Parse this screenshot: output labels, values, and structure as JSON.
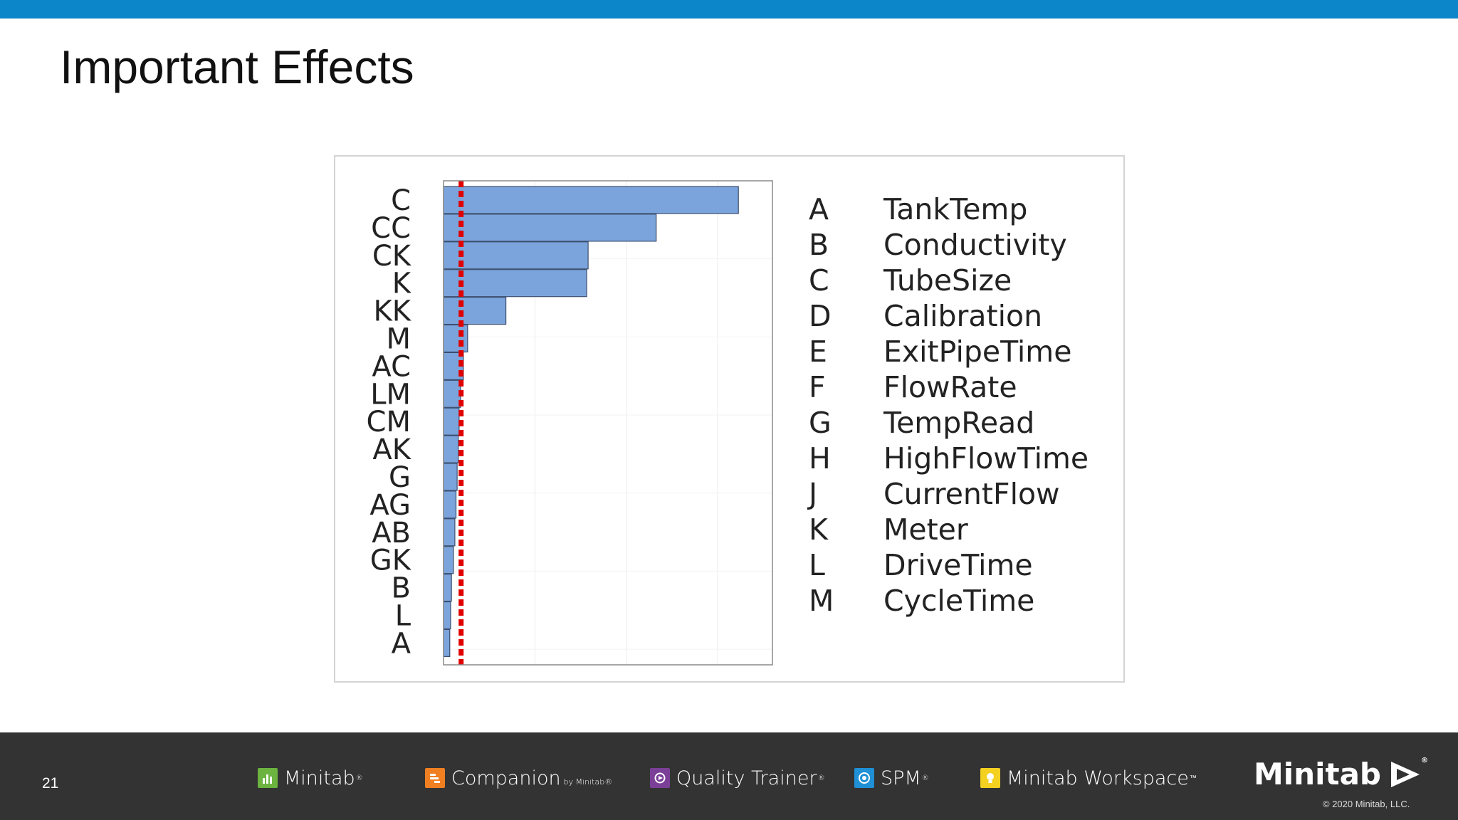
{
  "slide": {
    "title": "Important Effects",
    "page_number": "21"
  },
  "chart_data": {
    "type": "bar",
    "orientation": "horizontal",
    "title": "",
    "xlabel": "",
    "ylabel": "",
    "categories": [
      "C",
      "CC",
      "CK",
      "K",
      "KK",
      "M",
      "AC",
      "LM",
      "CM",
      "AK",
      "G",
      "AG",
      "AB",
      "GK",
      "B",
      "L",
      "A"
    ],
    "values": [
      10.4,
      7.5,
      5.1,
      5.05,
      2.2,
      0.85,
      0.7,
      0.6,
      0.55,
      0.52,
      0.48,
      0.44,
      0.4,
      0.35,
      0.28,
      0.25,
      0.22
    ],
    "xlim": [
      0,
      11.6
    ],
    "reference_line": {
      "value": 0.62,
      "color": "#e00000",
      "style": "dashed"
    },
    "bar_color": "#7ba4dc",
    "bar_edge_color": "#3d4f6e",
    "grid": true
  },
  "legend": {
    "items": [
      {
        "key": "A",
        "name": "TankTemp"
      },
      {
        "key": "B",
        "name": "Conductivity"
      },
      {
        "key": "C",
        "name": "TubeSize"
      },
      {
        "key": "D",
        "name": "Calibration"
      },
      {
        "key": "E",
        "name": "ExitPipeTime"
      },
      {
        "key": "F",
        "name": "FlowRate"
      },
      {
        "key": "G",
        "name": "TempRead"
      },
      {
        "key": "H",
        "name": "HighFlowTime"
      },
      {
        "key": "J",
        "name": "CurrentFlow"
      },
      {
        "key": "K",
        "name": "Meter"
      },
      {
        "key": "L",
        "name": "DriveTime"
      },
      {
        "key": "M",
        "name": "CycleTime"
      }
    ]
  },
  "footer": {
    "products": [
      {
        "name": "Minitab",
        "mark": "®",
        "icon": "bar-chart-icon",
        "color": "#6cb33f"
      },
      {
        "name": "Companion",
        "sub": "by Minitab®",
        "icon": "companion-icon",
        "color": "#f07f22"
      },
      {
        "name": "Quality Trainer",
        "mark": "®",
        "icon": "play-icon",
        "color": "#7b3f98"
      },
      {
        "name": "SPM",
        "mark": "®",
        "icon": "spiral-icon",
        "color": "#1f8fd6"
      },
      {
        "name": "Minitab Workspace",
        "mark": "™",
        "icon": "bulb-icon",
        "color": "#f4d020"
      }
    ],
    "brand": "Minitab",
    "brand_mark": "®",
    "copyright": "© 2020 Minitab, LLC."
  }
}
